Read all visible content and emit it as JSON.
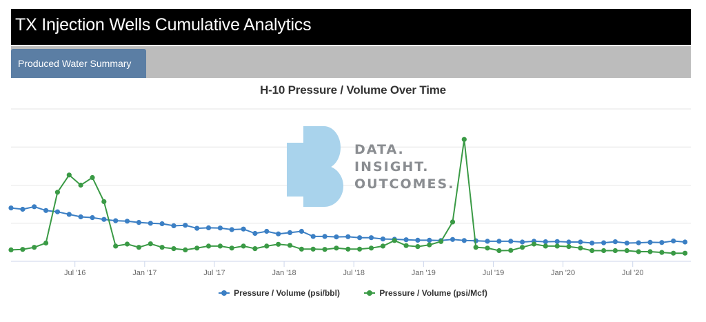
{
  "header": {
    "title": "TX Injection Wells Cumulative Analytics"
  },
  "tabs": [
    {
      "label": "Produced Water Summary",
      "active": true
    }
  ],
  "colors": {
    "series1": "#3b7fc4",
    "series2": "#3a9a45",
    "tab": "#5b7ea4",
    "watermark": "#a9d3ec"
  },
  "watermark": {
    "lines": [
      "DATA.",
      "INSIGHT.",
      "OUTCOMES."
    ]
  },
  "chart_data": {
    "type": "line",
    "title": "H-10 Pressure / Volume Over Time",
    "x_tick_labels": [
      "Jul '16",
      "Jan '17",
      "Jul '17",
      "Jan '18",
      "Jul '18",
      "Jan '19",
      "Jul '19",
      "Jan '20",
      "Jul '20"
    ],
    "x_tick_months": [
      6,
      12,
      18,
      24,
      30,
      36,
      42,
      48,
      54
    ],
    "x_range_months": [
      0.5,
      59
    ],
    "y_axis_labels_visible": false,
    "grid": true,
    "legend_position": "bottom",
    "x": [
      0.5,
      1.5,
      2.5,
      3.5,
      4.5,
      5.5,
      6.5,
      7.5,
      8.5,
      9.5,
      10.5,
      11.5,
      12.5,
      13.5,
      14.5,
      15.5,
      16.5,
      17.5,
      18.5,
      19.5,
      20.5,
      21.5,
      22.5,
      23.5,
      24.5,
      25.5,
      26.5,
      27.5,
      28.5,
      29.5,
      30.5,
      31.5,
      32.5,
      33.5,
      34.5,
      35.5,
      36.5,
      37.5,
      38.5,
      39.5,
      40.5,
      41.5,
      42.5,
      43.5,
      44.5,
      45.5,
      46.5,
      47.5,
      48.5,
      49.5,
      50.5,
      51.5,
      52.5,
      53.5,
      54.5,
      55.5,
      56.5,
      57.5,
      58.5
    ],
    "series": [
      {
        "name": "Pressure / Volume (psi/bbl)",
        "values": [
          2.1,
          2.05,
          2.15,
          2.0,
          1.95,
          1.85,
          1.75,
          1.72,
          1.65,
          1.6,
          1.58,
          1.53,
          1.5,
          1.48,
          1.4,
          1.42,
          1.3,
          1.32,
          1.31,
          1.25,
          1.27,
          1.1,
          1.18,
          1.08,
          1.13,
          1.18,
          0.98,
          0.98,
          0.96,
          0.97,
          0.93,
          0.93,
          0.88,
          0.87,
          0.85,
          0.83,
          0.83,
          0.82,
          0.86,
          0.82,
          0.81,
          0.79,
          0.79,
          0.79,
          0.76,
          0.79,
          0.77,
          0.78,
          0.76,
          0.76,
          0.72,
          0.73,
          0.77,
          0.72,
          0.73,
          0.75,
          0.74,
          0.8,
          0.76
        ]
      },
      {
        "name": "Pressure / Volume (psi/Mcf)",
        "values": [
          0.45,
          0.47,
          0.55,
          0.72,
          2.72,
          3.4,
          3.0,
          3.3,
          2.35,
          0.6,
          0.68,
          0.55,
          0.69,
          0.55,
          0.5,
          0.45,
          0.52,
          0.6,
          0.6,
          0.52,
          0.6,
          0.5,
          0.6,
          0.67,
          0.63,
          0.48,
          0.48,
          0.47,
          0.52,
          0.48,
          0.48,
          0.52,
          0.6,
          0.82,
          0.62,
          0.58,
          0.65,
          0.78,
          1.55,
          4.8,
          0.55,
          0.52,
          0.42,
          0.43,
          0.55,
          0.68,
          0.6,
          0.6,
          0.58,
          0.52,
          0.42,
          0.42,
          0.42,
          0.42,
          0.38,
          0.38,
          0.35,
          0.32,
          0.32
        ]
      }
    ]
  }
}
